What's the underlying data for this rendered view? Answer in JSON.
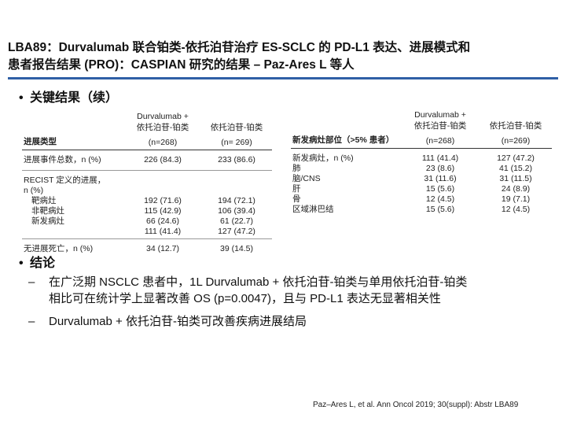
{
  "title": {
    "line1": "LBA89：Durvalumab 联合铂类-依托泊苷治疗 ES-SCLC 的 PD-L1 表达、进展模式和",
    "line2": "患者报告结果 (PRO)：CASPIAN 研究的结果 – Paz-Ares L 等人"
  },
  "accent_color": "#2f5fa6",
  "key_results": {
    "bullet": "•",
    "label": "关键结果（续）"
  },
  "table_left": {
    "header": {
      "col0": "进展类型",
      "col1_line1": "Durvalumab +",
      "col1_line2": "依托泊苷-铂类",
      "col1_n": "(n=268)",
      "col2_line1": "依托泊苷-铂类",
      "col2_n": "(n= 269)"
    },
    "rows": [
      {
        "label": "进展事件总数，n (%)",
        "v1": "226 (84.3)",
        "v2": "233 (86.6)"
      },
      {
        "label": "RECIST 定义的进展，",
        "label2": "n (%)"
      },
      {
        "label": "靶病灶",
        "v1": "192 (71.6)",
        "v2": "194 (72.1)"
      },
      {
        "label": "非靶病灶",
        "v1": "115 (42.9)",
        "v2": "106 (39.4)"
      },
      {
        "label": "新发病灶",
        "v1": "66 (24.6)",
        "v2": "61 (22.7)"
      },
      {
        "label": "",
        "v1": "111 (41.4)",
        "v2": "127 (47.2)"
      },
      {
        "label": "无进展死亡，n (%)",
        "v1": "34 (12.7)",
        "v2": "39 (14.5)"
      }
    ]
  },
  "table_right": {
    "header": {
      "col0": "新发病灶部位（>5% 患者）",
      "col1_line1": "Durvalumab +",
      "col1_line2": "依托泊苷-铂类",
      "col1_n": "(n=268)",
      "col2_line1": "依托泊苷-铂类",
      "col2_n": "(n=269)"
    },
    "rows": [
      {
        "label": "新发病灶，n (%)",
        "v1": "111 (41.4)",
        "v2": "127 (47.2)"
      },
      {
        "label": "肺",
        "v1": "23 (8.6)",
        "v2": "41 (15.2)"
      },
      {
        "label": "脑/CNS",
        "v1": "31 (11.6)",
        "v2": "31 (11.5)"
      },
      {
        "label": "肝",
        "v1": "15 (5.6)",
        "v2": "24 (8.9)"
      },
      {
        "label": "骨",
        "v1": "12 (4.5)",
        "v2": "19 (7.1)"
      },
      {
        "label": "区域淋巴结",
        "v1": "15 (5.6)",
        "v2": "12 (4.5)"
      }
    ]
  },
  "conclusions": {
    "bullet": "•",
    "label": "结论",
    "dash": "–",
    "item1_line1": "在广泛期 NSCLC 患者中，1L Durvalumab + 依托泊苷-铂类与单用依托泊苷-铂类",
    "item1_line2": "相比可在统计学上显著改善 OS (p=0.0047)，且与 PD-L1 表达无显著相关性",
    "item2": "Durvalumab + 依托泊苷-铂类可改善疾病进展结局"
  },
  "reference": "Paz–Ares L, et al. Ann Oncol 2019; 30(suppl): Abstr LBA89"
}
